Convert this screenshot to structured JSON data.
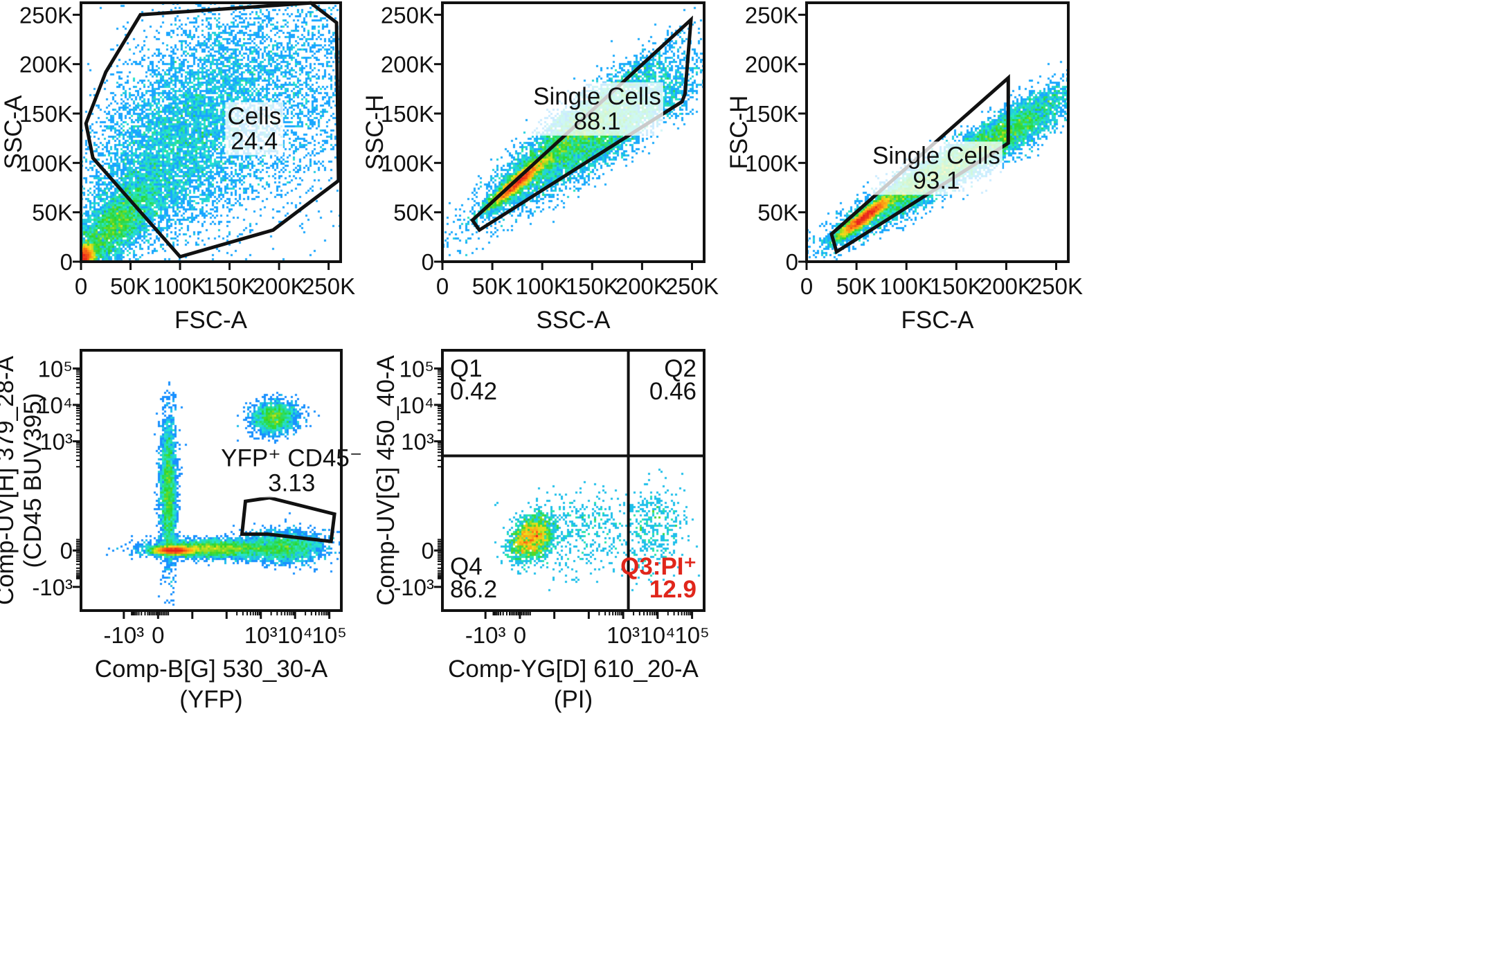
{
  "colors": {
    "frame": "#111111",
    "highlight": "#e0261b",
    "label_bg": "#ffffff"
  },
  "density_colormap": [
    "#1a1aff",
    "#19a7ff",
    "#27e6c8",
    "#2cd62c",
    "#f3e21a",
    "#ff8a14",
    "#e8231c"
  ],
  "chart_data": [
    {
      "id": "p1",
      "type": "scatter",
      "style": "density",
      "xlabel": "FSC-A",
      "ylabel": "SSC-A",
      "xscale": "linear",
      "yscale": "linear",
      "xlim": [
        0,
        262144
      ],
      "ylim": [
        0,
        262144
      ],
      "xticks": [
        0,
        50000,
        100000,
        150000,
        200000,
        250000
      ],
      "xtick_labels": [
        "0",
        "50K",
        "100K",
        "150K",
        "200K",
        "250K"
      ],
      "yticks": [
        0,
        50000,
        100000,
        150000,
        200000,
        250000
      ],
      "ytick_labels": [
        "0",
        "50K",
        "100K",
        "150K",
        "200K",
        "250K"
      ],
      "gates": [
        {
          "name": "Cells",
          "value": "24.4",
          "polygon": [
            [
              100000,
              5000
            ],
            [
              194000,
              32000
            ],
            [
              260000,
              82000
            ],
            [
              258000,
              242000
            ],
            [
              232000,
              262000
            ],
            [
              60000,
              250000
            ],
            [
              25000,
              192000
            ],
            [
              5000,
              140000
            ],
            [
              12000,
              105000
            ]
          ],
          "label_at": [
            175000,
            135000
          ]
        }
      ],
      "populations": [
        {
          "mean": [
            3000,
            5000
          ],
          "sd": [
            5000,
            6000
          ],
          "rho": 0.2,
          "weight": 0.16
        },
        {
          "mean": [
            32000,
            35000
          ],
          "sd": [
            25000,
            26000
          ],
          "rho": 0.75,
          "weight": 0.24
        },
        {
          "mean": [
            92000,
            112000
          ],
          "sd": [
            48000,
            52000
          ],
          "rho": 0.45,
          "weight": 0.35
        },
        {
          "mean": [
            175000,
            175000
          ],
          "sd": [
            65000,
            62000
          ],
          "rho": 0.15,
          "weight": 0.25
        }
      ],
      "n_events": 17000
    },
    {
      "id": "p2",
      "type": "scatter",
      "style": "density",
      "xlabel": "SSC-A",
      "ylabel": "SSC-H",
      "xscale": "linear",
      "yscale": "linear",
      "xlim": [
        0,
        262144
      ],
      "ylim": [
        0,
        262144
      ],
      "xticks": [
        0,
        50000,
        100000,
        150000,
        200000,
        250000
      ],
      "xtick_labels": [
        "0",
        "50K",
        "100K",
        "150K",
        "200K",
        "250K"
      ],
      "yticks": [
        0,
        50000,
        100000,
        150000,
        200000,
        250000
      ],
      "ytick_labels": [
        "0",
        "50K",
        "100K",
        "150K",
        "200K",
        "250K"
      ],
      "gates": [
        {
          "name": "Single Cells",
          "value": "88.1",
          "polygon": [
            [
              30000,
              42000
            ],
            [
              37000,
              32000
            ],
            [
              240000,
              162000
            ],
            [
              243000,
              170000
            ],
            [
              249000,
              245000
            ]
          ],
          "label_at": [
            155000,
            155000
          ]
        }
      ],
      "populations": [
        {
          "mean": [
            75000,
            80000
          ],
          "sd": [
            14000,
            12000
          ],
          "rho": 0.93,
          "weight": 0.32
        },
        {
          "mean": [
            130000,
            128000
          ],
          "sd": [
            45000,
            40000
          ],
          "rho": 0.92,
          "weight": 0.43
        },
        {
          "mean": [
            175000,
            135000
          ],
          "sd": [
            42000,
            33000
          ],
          "rho": 0.88,
          "weight": 0.25
        }
      ],
      "n_events": 13000
    },
    {
      "id": "p3",
      "type": "scatter",
      "style": "density",
      "xlabel": "FSC-A",
      "ylabel": "FSC-H",
      "xscale": "linear",
      "yscale": "linear",
      "xlim": [
        0,
        262144
      ],
      "ylim": [
        0,
        262144
      ],
      "xticks": [
        0,
        50000,
        100000,
        150000,
        200000,
        250000
      ],
      "xtick_labels": [
        "0",
        "50K",
        "100K",
        "150K",
        "200K",
        "250K"
      ],
      "yticks": [
        0,
        50000,
        100000,
        150000,
        200000,
        250000
      ],
      "ytick_labels": [
        "0",
        "50K",
        "100K",
        "150K",
        "200K",
        "250K"
      ],
      "gates": [
        {
          "name": "Single Cells",
          "value": "93.1",
          "polygon": [
            [
              25000,
              28000
            ],
            [
              30000,
              10000
            ],
            [
              202000,
              120000
            ],
            [
              202000,
              186000
            ]
          ],
          "label_at": [
            130000,
            95000
          ]
        }
      ],
      "populations": [
        {
          "mean": [
            58000,
            45000
          ],
          "sd": [
            13000,
            10000
          ],
          "rho": 0.92,
          "weight": 0.33
        },
        {
          "mean": [
            120000,
            82000
          ],
          "sd": [
            45000,
            30000
          ],
          "rho": 0.93,
          "weight": 0.42
        },
        {
          "mean": [
            205000,
            132000
          ],
          "sd": [
            35000,
            25000
          ],
          "rho": 0.86,
          "weight": 0.25
        }
      ],
      "n_events": 13000
    },
    {
      "id": "p4",
      "type": "scatter",
      "style": "density",
      "xlabel": "Comp-B[G] 530_30-A",
      "xlabel2": "(YFP)",
      "ylabel": "Comp-UV[H] 379_28-A",
      "ylabel2": "(CD45 BUV395)",
      "xscale": "biexponential",
      "yscale": "biexponential",
      "xlim": [
        -2.25,
        5.35
      ],
      "ylim": [
        -1.65,
        5.5
      ],
      "xticks": [
        -1,
        0,
        1,
        2,
        3,
        4,
        5
      ],
      "xtick_labels": [
        "-10³",
        "0",
        "10³",
        "10⁴",
        "10⁵"
      ],
      "x_label_ticks": [
        -1,
        0,
        3,
        4,
        5
      ],
      "yticks": [
        -1,
        0,
        3,
        4,
        5
      ],
      "ytick_labels": [
        "-10³",
        "0",
        "10³",
        "10⁴",
        "10⁵"
      ],
      "gates": [
        {
          "name": "YFP⁺ CD45⁻",
          "value": "3.13",
          "polygon": [
            [
              2.45,
              0.45
            ],
            [
              3.2,
              0.45
            ],
            [
              5.05,
              0.25
            ],
            [
              5.15,
              1.0
            ],
            [
              3.25,
              1.45
            ],
            [
              2.55,
              1.35
            ]
          ],
          "label_at": [
            3.9,
            2.2
          ]
        }
      ],
      "populations": [
        {
          "mean": [
            0.45,
            0.0
          ],
          "sd": [
            0.28,
            0.05
          ],
          "rho": 0.0,
          "weight": 0.3
        },
        {
          "mean": [
            0.3,
            1.6
          ],
          "sd": [
            0.12,
            1.0
          ],
          "rho": 0.0,
          "weight": 0.18
        },
        {
          "mean": [
            1.6,
            0.05
          ],
          "sd": [
            0.9,
            0.12
          ],
          "rho": 0.0,
          "weight": 0.26
        },
        {
          "mean": [
            3.7,
            0.1
          ],
          "sd": [
            0.6,
            0.22
          ],
          "rho": 0.0,
          "weight": 0.14
        },
        {
          "mean": [
            3.4,
            3.65
          ],
          "sd": [
            0.32,
            0.22
          ],
          "rho": 0.1,
          "weight": 0.12
        }
      ],
      "n_events": 15000
    },
    {
      "id": "p5",
      "type": "scatter",
      "style": "density",
      "xlabel": "Comp-YG[D] 610_20-A",
      "xlabel2": "(PI)",
      "ylabel": "Comp-UV[G] 450_40-A",
      "xscale": "biexponential",
      "yscale": "biexponential",
      "xlim": [
        -2.25,
        5.35
      ],
      "ylim": [
        -1.65,
        5.5
      ],
      "xticks": [
        -1,
        0,
        1,
        2,
        3,
        4,
        5
      ],
      "xtick_labels": [
        "-10³",
        "0",
        "10³",
        "10⁴",
        "10⁵"
      ],
      "x_label_ticks": [
        -1,
        0,
        3,
        4,
        5
      ],
      "yticks": [
        -1,
        0,
        3,
        4,
        5
      ],
      "ytick_labels": [
        "-10³",
        "0",
        "10³",
        "10⁴",
        "10⁵"
      ],
      "quadrant_split": [
        3.15,
        2.6
      ],
      "quadrants": [
        {
          "name": "Q1",
          "value": "0.42",
          "corner": "top-left",
          "highlight": false
        },
        {
          "name": "Q2",
          "value": "0.46",
          "corner": "top-right",
          "highlight": false
        },
        {
          "name": "Q3:PI⁺",
          "value": "12.9",
          "corner": "bottom-right",
          "highlight": true
        },
        {
          "name": "Q4",
          "value": "86.2",
          "corner": "bottom-left",
          "highlight": false
        }
      ],
      "populations": [
        {
          "mean": [
            0.35,
            0.35
          ],
          "sd": [
            0.32,
            0.32
          ],
          "rho": 0.3,
          "weight": 0.7
        },
        {
          "mean": [
            1.8,
            0.5
          ],
          "sd": [
            0.7,
            0.6
          ],
          "rho": 0.1,
          "weight": 0.15
        },
        {
          "mean": [
            3.9,
            0.6
          ],
          "sd": [
            0.45,
            0.6
          ],
          "rho": 0.1,
          "weight": 0.15
        }
      ],
      "n_events": 2600
    }
  ]
}
